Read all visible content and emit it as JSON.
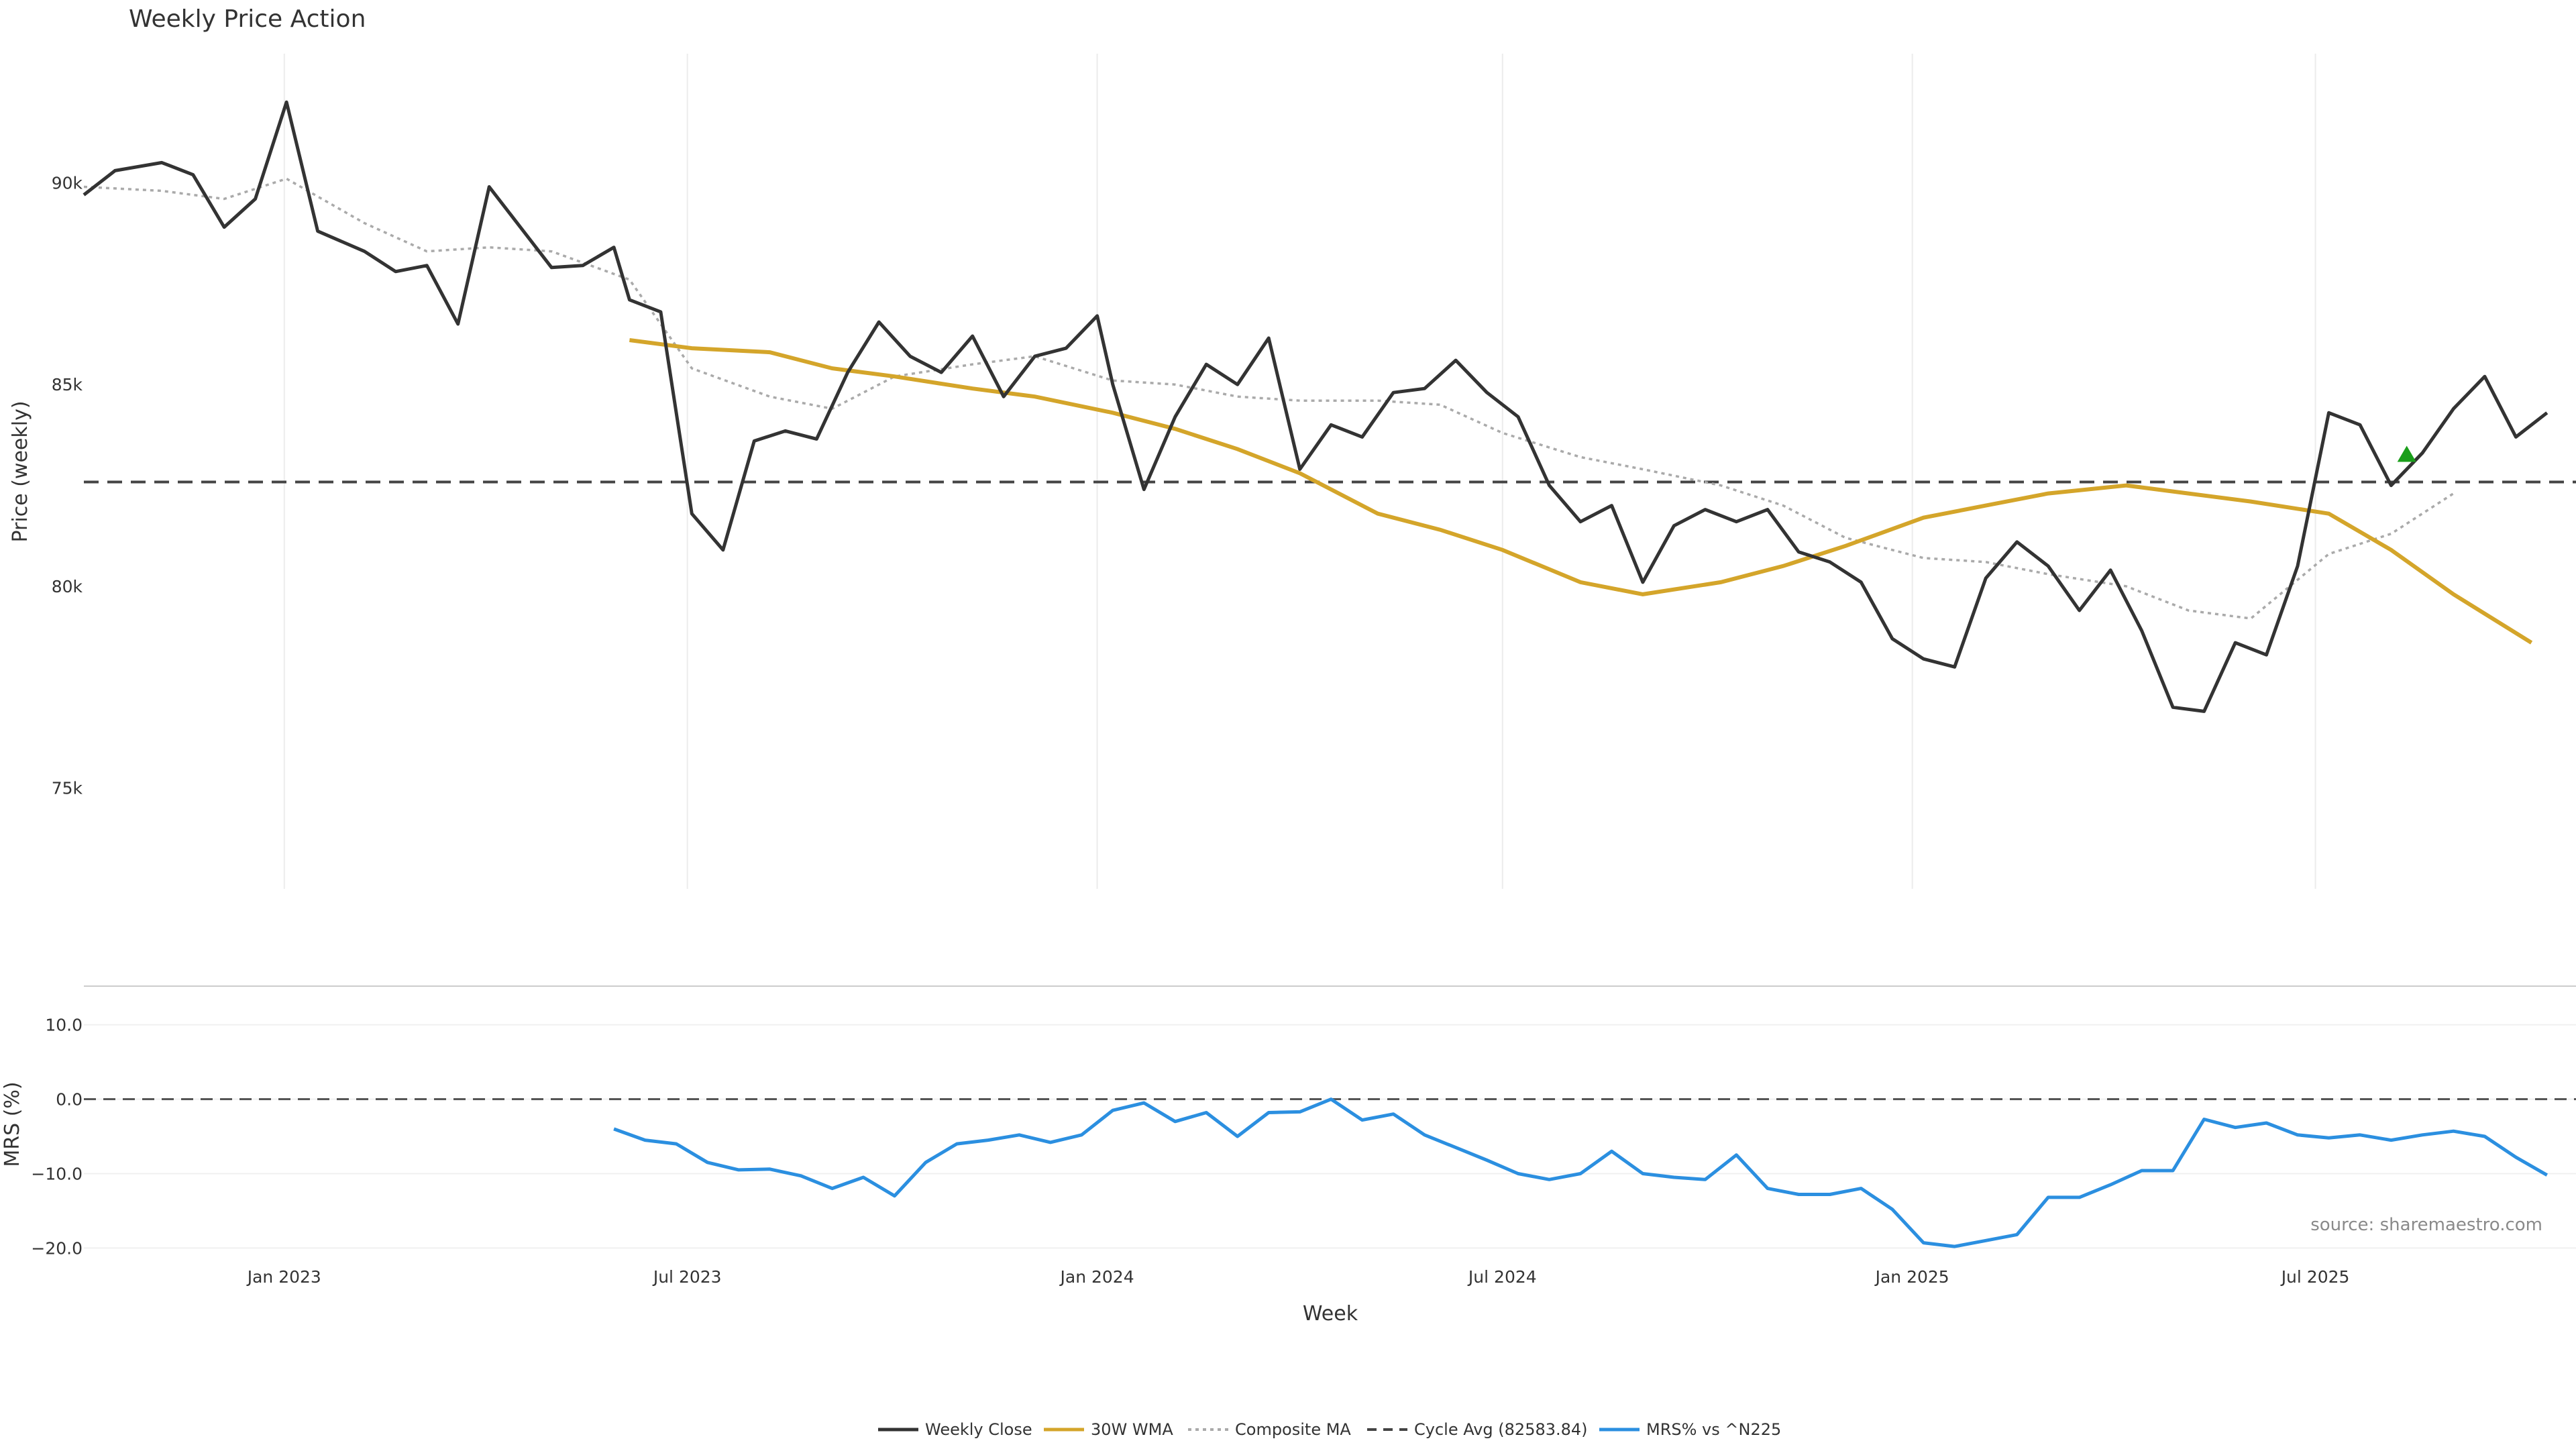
{
  "chart_data": {
    "type": "line",
    "title": "Weekly Price Action",
    "xlabel": "Week",
    "source_text": "source: sharemaestro.com",
    "x_ticks": [
      "Jan 2023",
      "Jul 2023",
      "Jan 2024",
      "Jul 2024",
      "Jan 2025",
      "Jul 2025"
    ],
    "x_range": [
      "2022-10-03",
      "2025-10-26"
    ],
    "colors": {
      "weekly_close": "#333333",
      "wma": "#d4a52a",
      "composite": "#aaaaaa",
      "cycle_avg": "#444444",
      "mrs": "#2b8fe0",
      "marker": "#1a9e1a"
    },
    "price_panel": {
      "ylabel": "Price (weekly)",
      "y_ticks": [
        "75k",
        "80k",
        "85k",
        "90k"
      ],
      "y_tick_values": [
        75000,
        80000,
        85000,
        90000
      ],
      "ylim": [
        72500,
        93200
      ],
      "cycle_avg": 82583.84,
      "marker": {
        "x": "2025-08-11",
        "y": 83250
      }
    },
    "mrs_panel": {
      "ylabel": "MRS (%)",
      "y_ticks": [
        "10.0",
        "0.0",
        "−10.0",
        "−20.0"
      ],
      "y_tick_values": [
        10,
        0,
        -10,
        -20
      ],
      "ylim": [
        -20.6,
        15.2
      ],
      "zero_line": 0
    },
    "legend": [
      {
        "label": "Weekly Close",
        "style": "solid",
        "color": "#333333"
      },
      {
        "label": "30W WMA",
        "style": "solid",
        "color": "#d4a52a"
      },
      {
        "label": "Composite MA",
        "style": "dotted",
        "color": "#aaaaaa"
      },
      {
        "label": "Cycle Avg (82583.84)",
        "style": "dashed",
        "color": "#444444"
      },
      {
        "label": "MRS% vs ^N225",
        "style": "solid",
        "color": "#2b8fe0"
      }
    ],
    "series": [
      {
        "name": "Weekly Close",
        "points": [
          [
            "2022-10-03",
            89700
          ],
          [
            "2022-10-17",
            90300
          ],
          [
            "2022-11-07",
            90500
          ],
          [
            "2022-11-21",
            90200
          ],
          [
            "2022-12-05",
            88900
          ],
          [
            "2022-12-19",
            89600
          ],
          [
            "2023-01-02",
            92000
          ],
          [
            "2023-01-16",
            88800
          ],
          [
            "2023-02-06",
            88300
          ],
          [
            "2023-02-20",
            87800
          ],
          [
            "2023-03-06",
            87950
          ],
          [
            "2023-03-20",
            86500
          ],
          [
            "2023-04-03",
            89900
          ],
          [
            "2023-04-17",
            88900
          ],
          [
            "2023-05-01",
            87900
          ],
          [
            "2023-05-15",
            87950
          ],
          [
            "2023-05-29",
            88400
          ],
          [
            "2023-06-05",
            87100
          ],
          [
            "2023-06-19",
            86800
          ],
          [
            "2023-07-03",
            81800
          ],
          [
            "2023-07-17",
            80900
          ],
          [
            "2023-07-31",
            83600
          ],
          [
            "2023-08-14",
            83850
          ],
          [
            "2023-08-28",
            83650
          ],
          [
            "2023-09-11",
            85300
          ],
          [
            "2023-09-25",
            86550
          ],
          [
            "2023-10-09",
            85700
          ],
          [
            "2023-10-23",
            85300
          ],
          [
            "2023-11-06",
            86200
          ],
          [
            "2023-11-20",
            84700
          ],
          [
            "2023-12-04",
            85700
          ],
          [
            "2023-12-18",
            85900
          ],
          [
            "2024-01-01",
            86700
          ],
          [
            "2024-01-08",
            85000
          ],
          [
            "2024-01-22",
            82400
          ],
          [
            "2024-02-05",
            84200
          ],
          [
            "2024-02-19",
            85500
          ],
          [
            "2024-03-04",
            85000
          ],
          [
            "2024-03-18",
            86150
          ],
          [
            "2024-04-01",
            82900
          ],
          [
            "2024-04-15",
            84000
          ],
          [
            "2024-04-29",
            83700
          ],
          [
            "2024-05-13",
            84800
          ],
          [
            "2024-05-27",
            84900
          ],
          [
            "2024-06-10",
            85600
          ],
          [
            "2024-06-24",
            84800
          ],
          [
            "2024-07-08",
            84200
          ],
          [
            "2024-07-22",
            82500
          ],
          [
            "2024-08-05",
            81600
          ],
          [
            "2024-08-19",
            82000
          ],
          [
            "2024-09-02",
            80100
          ],
          [
            "2024-09-16",
            81500
          ],
          [
            "2024-09-30",
            81900
          ],
          [
            "2024-10-14",
            81600
          ],
          [
            "2024-10-28",
            81900
          ],
          [
            "2024-11-11",
            80850
          ],
          [
            "2024-11-25",
            80600
          ],
          [
            "2024-12-09",
            80100
          ],
          [
            "2024-12-23",
            78700
          ],
          [
            "2025-01-06",
            78200
          ],
          [
            "2025-01-20",
            78000
          ],
          [
            "2025-02-03",
            80200
          ],
          [
            "2025-02-17",
            81100
          ],
          [
            "2025-03-03",
            80500
          ],
          [
            "2025-03-17",
            79400
          ],
          [
            "2025-03-31",
            80400
          ],
          [
            "2025-04-14",
            78900
          ],
          [
            "2025-04-28",
            77000
          ],
          [
            "2025-05-12",
            76900
          ],
          [
            "2025-05-26",
            78600
          ],
          [
            "2025-06-09",
            78300
          ],
          [
            "2025-06-23",
            80500
          ],
          [
            "2025-07-07",
            84300
          ],
          [
            "2025-07-21",
            84000
          ],
          [
            "2025-08-04",
            82500
          ],
          [
            "2025-08-18",
            83300
          ],
          [
            "2025-09-01",
            84400
          ],
          [
            "2025-09-15",
            85200
          ],
          [
            "2025-09-29",
            83700
          ],
          [
            "2025-10-13",
            84300
          ]
        ]
      },
      {
        "name": "30W WMA",
        "points": [
          [
            "2023-06-05",
            86100
          ],
          [
            "2023-07-03",
            85900
          ],
          [
            "2023-08-07",
            85800
          ],
          [
            "2023-09-04",
            85400
          ],
          [
            "2023-10-02",
            85200
          ],
          [
            "2023-11-06",
            84900
          ],
          [
            "2023-12-04",
            84700
          ],
          [
            "2024-01-08",
            84300
          ],
          [
            "2024-02-05",
            83900
          ],
          [
            "2024-03-04",
            83400
          ],
          [
            "2024-04-01",
            82800
          ],
          [
            "2024-05-06",
            81800
          ],
          [
            "2024-06-03",
            81400
          ],
          [
            "2024-07-01",
            80900
          ],
          [
            "2024-08-05",
            80100
          ],
          [
            "2024-09-02",
            79800
          ],
          [
            "2024-10-07",
            80100
          ],
          [
            "2024-11-04",
            80500
          ],
          [
            "2024-12-02",
            81000
          ],
          [
            "2025-01-06",
            81700
          ],
          [
            "2025-02-03",
            82000
          ],
          [
            "2025-03-03",
            82300
          ],
          [
            "2025-04-07",
            82500
          ],
          [
            "2025-05-05",
            82300
          ],
          [
            "2025-06-02",
            82100
          ],
          [
            "2025-07-07",
            81800
          ],
          [
            "2025-08-04",
            80900
          ],
          [
            "2025-09-01",
            79800
          ],
          [
            "2025-10-06",
            78600
          ]
        ]
      },
      {
        "name": "Composite MA",
        "points": [
          [
            "2022-10-03",
            89900
          ],
          [
            "2022-11-07",
            89800
          ],
          [
            "2022-12-05",
            89600
          ],
          [
            "2023-01-02",
            90100
          ],
          [
            "2023-02-06",
            89000
          ],
          [
            "2023-03-06",
            88300
          ],
          [
            "2023-04-03",
            88400
          ],
          [
            "2023-05-01",
            88300
          ],
          [
            "2023-06-05",
            87600
          ],
          [
            "2023-07-03",
            85400
          ],
          [
            "2023-08-07",
            84700
          ],
          [
            "2023-09-04",
            84400
          ],
          [
            "2023-10-02",
            85200
          ],
          [
            "2023-11-06",
            85500
          ],
          [
            "2023-12-04",
            85700
          ],
          [
            "2024-01-08",
            85100
          ],
          [
            "2024-02-05",
            85000
          ],
          [
            "2024-03-04",
            84700
          ],
          [
            "2024-04-01",
            84600
          ],
          [
            "2024-05-06",
            84600
          ],
          [
            "2024-06-03",
            84500
          ],
          [
            "2024-07-01",
            83800
          ],
          [
            "2024-08-05",
            83200
          ],
          [
            "2024-09-02",
            82900
          ],
          [
            "2024-10-07",
            82500
          ],
          [
            "2024-11-04",
            82000
          ],
          [
            "2024-12-02",
            81200
          ],
          [
            "2025-01-06",
            80700
          ],
          [
            "2025-02-03",
            80600
          ],
          [
            "2025-03-03",
            80300
          ],
          [
            "2025-04-07",
            80000
          ],
          [
            "2025-05-05",
            79400
          ],
          [
            "2025-06-02",
            79200
          ],
          [
            "2025-07-07",
            80800
          ],
          [
            "2025-08-04",
            81300
          ],
          [
            "2025-09-01",
            82300
          ]
        ]
      },
      {
        "name": "MRS% vs ^N225",
        "points": [
          [
            "2023-05-29",
            -4.0
          ],
          [
            "2023-06-12",
            -5.5
          ],
          [
            "2023-06-26",
            -6.0
          ],
          [
            "2023-07-10",
            -8.5
          ],
          [
            "2023-07-24",
            -9.5
          ],
          [
            "2023-08-07",
            -9.4
          ],
          [
            "2023-08-21",
            -10.3
          ],
          [
            "2023-09-04",
            -12.0
          ],
          [
            "2023-09-18",
            -10.5
          ],
          [
            "2023-10-02",
            -13.0
          ],
          [
            "2023-10-16",
            -8.5
          ],
          [
            "2023-10-30",
            -6.0
          ],
          [
            "2023-11-13",
            -5.5
          ],
          [
            "2023-11-27",
            -4.8
          ],
          [
            "2023-12-11",
            -5.8
          ],
          [
            "2023-12-25",
            -4.8
          ],
          [
            "2024-01-08",
            -1.5
          ],
          [
            "2024-01-22",
            -0.5
          ],
          [
            "2024-02-05",
            -3.0
          ],
          [
            "2024-02-19",
            -1.8
          ],
          [
            "2024-03-04",
            -5.0
          ],
          [
            "2024-03-18",
            -1.8
          ],
          [
            "2024-04-01",
            -1.7
          ],
          [
            "2024-04-15",
            0.0
          ],
          [
            "2024-04-29",
            -2.8
          ],
          [
            "2024-05-13",
            -2.0
          ],
          [
            "2024-05-27",
            -4.8
          ],
          [
            "2024-06-10",
            -6.5
          ],
          [
            "2024-06-24",
            -8.2
          ],
          [
            "2024-07-08",
            -10.0
          ],
          [
            "2024-07-22",
            -10.8
          ],
          [
            "2024-08-05",
            -10.0
          ],
          [
            "2024-08-19",
            -7.0
          ],
          [
            "2024-09-02",
            -10.0
          ],
          [
            "2024-09-16",
            -10.5
          ],
          [
            "2024-09-30",
            -10.8
          ],
          [
            "2024-10-14",
            -7.5
          ],
          [
            "2024-10-28",
            -12.0
          ],
          [
            "2024-11-11",
            -12.8
          ],
          [
            "2024-11-25",
            -12.8
          ],
          [
            "2024-12-09",
            -12.0
          ],
          [
            "2024-12-23",
            -14.8
          ],
          [
            "2025-01-06",
            -19.3
          ],
          [
            "2025-01-20",
            -19.8
          ],
          [
            "2025-02-03",
            -19.0
          ],
          [
            "2025-02-17",
            -18.2
          ],
          [
            "2025-03-03",
            -13.2
          ],
          [
            "2025-03-17",
            -13.2
          ],
          [
            "2025-03-31",
            -11.5
          ],
          [
            "2025-04-14",
            -9.6
          ],
          [
            "2025-04-28",
            -9.6
          ],
          [
            "2025-05-12",
            -2.7
          ],
          [
            "2025-05-26",
            -3.8
          ],
          [
            "2025-06-09",
            -3.2
          ],
          [
            "2025-06-23",
            -4.8
          ],
          [
            "2025-07-07",
            -5.2
          ],
          [
            "2025-07-21",
            -4.8
          ],
          [
            "2025-08-04",
            -5.5
          ],
          [
            "2025-08-18",
            -4.8
          ],
          [
            "2025-09-01",
            -4.3
          ],
          [
            "2025-09-15",
            -5.0
          ],
          [
            "2025-09-29",
            -7.8
          ],
          [
            "2025-10-13",
            -10.2
          ]
        ]
      }
    ]
  }
}
